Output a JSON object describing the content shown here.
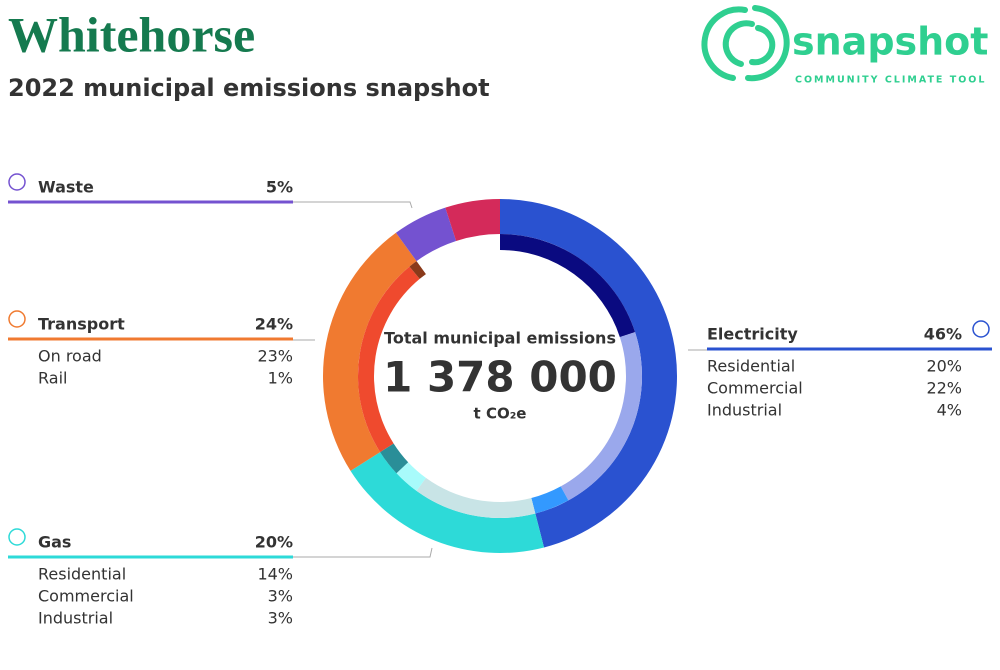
{
  "header": {
    "title": "Whitehorse",
    "subtitle": "2022 municipal emissions snapshot"
  },
  "logo": {
    "name": "snapshot",
    "tagline": "COMMUNITY CLIMATE TOOL"
  },
  "chart_data": {
    "type": "donut",
    "categories": [
      "Electricity",
      "Gas",
      "Transport",
      "Waste",
      null
    ],
    "values": [
      46,
      20,
      24,
      5,
      5
    ],
    "value_labels": [
      "46%",
      "20%",
      "24%",
      "5%",
      null
    ],
    "colors": [
      "#2a52d0",
      "#2ddad8",
      "#f07a30",
      "#7452d0",
      "#d42a5a"
    ],
    "breakdown": [
      {
        "categories": [
          "Residential",
          "Commercial",
          "Industrial"
        ],
        "values": [
          20,
          22,
          4
        ],
        "value_labels": [
          "20%",
          "22%",
          "4%"
        ],
        "colors": [
          "#0a0a80",
          "#9aa8ec",
          "#3399ff"
        ]
      },
      {
        "categories": [
          "Residential",
          "Commercial",
          "Industrial"
        ],
        "values": [
          14,
          3,
          3
        ],
        "value_labels": [
          "14%",
          "3%",
          "3%"
        ],
        "colors": [
          "#c8e4e6",
          "#a8fbfb",
          "#2a8e98"
        ]
      },
      {
        "categories": [
          "On road",
          "Rail"
        ],
        "values": [
          23,
          1
        ],
        "value_labels": [
          "23%",
          "1%"
        ],
        "colors": [
          "#ef4a2e",
          "#8a3a1a"
        ]
      },
      null,
      null
    ],
    "center": {
      "label": "Total municipal emissions",
      "total": {
        "value": 1378000,
        "label": "1 378 000"
      },
      "unit": "t CO₂e"
    }
  }
}
